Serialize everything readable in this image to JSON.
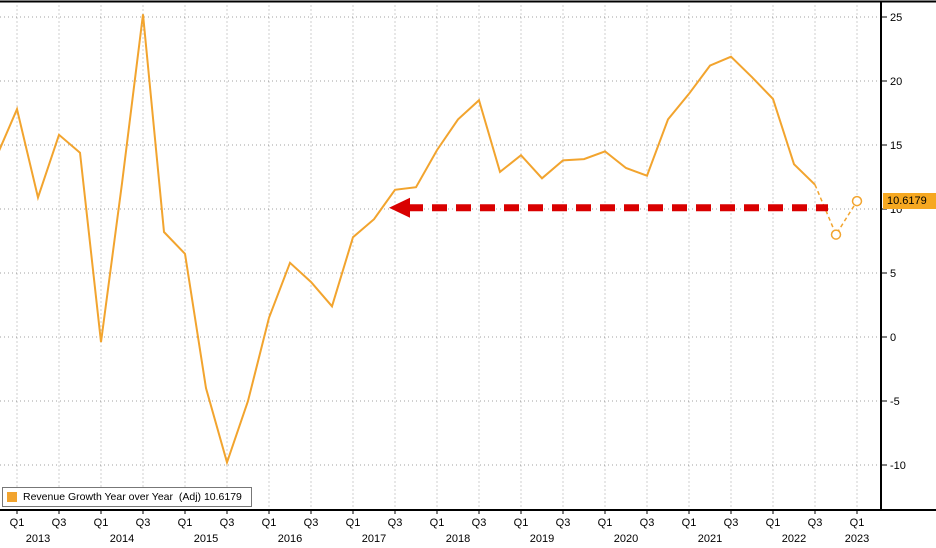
{
  "colors": {
    "series": "#f2a42e",
    "arrow": "#d90000",
    "value_label_bg": "#f6a821",
    "grid": "#a0a0a0",
    "axis": "#000000"
  },
  "legend": {
    "label": "Revenue Growth Year over Year  (Adj) 10.6179"
  },
  "value_label": {
    "text": "10.6179"
  },
  "chart_data": {
    "type": "line",
    "title": "",
    "xlabel": "",
    "ylabel": "",
    "ylim": [
      -10,
      25
    ],
    "y_ticks": [
      25,
      20,
      15,
      10,
      5,
      0,
      -5,
      -10
    ],
    "grid": "dotted",
    "legend_position": "bottom-left",
    "x_axis": {
      "years": [
        {
          "label": "2013",
          "quarters": [
            "Q1",
            "Q3"
          ]
        },
        {
          "label": "2014",
          "quarters": [
            "Q1",
            "Q3"
          ]
        },
        {
          "label": "2015",
          "quarters": [
            "Q1",
            "Q3"
          ]
        },
        {
          "label": "2016",
          "quarters": [
            "Q1",
            "Q3"
          ]
        },
        {
          "label": "2017",
          "quarters": [
            "Q1",
            "Q3"
          ]
        },
        {
          "label": "2018",
          "quarters": [
            "Q1",
            "Q3"
          ]
        },
        {
          "label": "2019",
          "quarters": [
            "Q1",
            "Q3"
          ]
        },
        {
          "label": "2020",
          "quarters": [
            "Q1",
            "Q3"
          ]
        },
        {
          "label": "2021",
          "quarters": [
            "Q1",
            "Q3"
          ]
        },
        {
          "label": "2022",
          "quarters": [
            "Q1",
            "Q3"
          ]
        },
        {
          "label": "2023",
          "quarters": [
            "Q1"
          ]
        }
      ]
    },
    "series": [
      {
        "name": "Revenue Growth Year over Year (Adj)",
        "color": "#f2a42e",
        "dashed_tail_segments": 2,
        "open_markers_last_n": 2,
        "points": [
          {
            "t": "2012 Q4",
            "v": 14.0
          },
          {
            "t": "2013 Q1",
            "v": 17.8
          },
          {
            "t": "2013 Q2",
            "v": 10.9
          },
          {
            "t": "2013 Q3",
            "v": 15.8
          },
          {
            "t": "2013 Q4",
            "v": 14.4
          },
          {
            "t": "2014 Q1",
            "v": -0.4
          },
          {
            "t": "2014 Q2",
            "v": 12.0
          },
          {
            "t": "2014 Q3",
            "v": 25.2
          },
          {
            "t": "2014 Q4",
            "v": 8.2
          },
          {
            "t": "2015 Q1",
            "v": 6.5
          },
          {
            "t": "2015 Q2",
            "v": -4.0
          },
          {
            "t": "2015 Q3",
            "v": -9.8
          },
          {
            "t": "2015 Q4",
            "v": -5.0
          },
          {
            "t": "2016 Q1",
            "v": 1.5
          },
          {
            "t": "2016 Q2",
            "v": 5.8
          },
          {
            "t": "2016 Q3",
            "v": 4.3
          },
          {
            "t": "2016 Q4",
            "v": 2.4
          },
          {
            "t": "2017 Q1",
            "v": 7.8
          },
          {
            "t": "2017 Q2",
            "v": 9.2
          },
          {
            "t": "2017 Q3",
            "v": 11.5
          },
          {
            "t": "2017 Q4",
            "v": 11.7
          },
          {
            "t": "2018 Q1",
            "v": 14.6
          },
          {
            "t": "2018 Q2",
            "v": 17.0
          },
          {
            "t": "2018 Q3",
            "v": 18.5
          },
          {
            "t": "2018 Q4",
            "v": 12.9
          },
          {
            "t": "2019 Q1",
            "v": 14.2
          },
          {
            "t": "2019 Q2",
            "v": 12.4
          },
          {
            "t": "2019 Q3",
            "v": 13.8
          },
          {
            "t": "2019 Q4",
            "v": 13.9
          },
          {
            "t": "2020 Q1",
            "v": 14.5
          },
          {
            "t": "2020 Q2",
            "v": 13.2
          },
          {
            "t": "2020 Q3",
            "v": 12.6
          },
          {
            "t": "2020 Q4",
            "v": 17.0
          },
          {
            "t": "2021 Q1",
            "v": 19.0
          },
          {
            "t": "2021 Q2",
            "v": 21.2
          },
          {
            "t": "2021 Q3",
            "v": 21.9
          },
          {
            "t": "2021 Q4",
            "v": 20.3
          },
          {
            "t": "2022 Q1",
            "v": 18.6
          },
          {
            "t": "2022 Q2",
            "v": 13.5
          },
          {
            "t": "2022 Q3",
            "v": 11.9
          },
          {
            "t": "2022 Q4",
            "v": 8.0
          },
          {
            "t": "2023 Q1",
            "v": 10.6179
          }
        ]
      }
    ],
    "annotation": {
      "type": "dashed-arrow-left",
      "color": "#d90000",
      "y_value": 10.1,
      "from": "2022 Q4",
      "to": "2017 Q3"
    }
  }
}
